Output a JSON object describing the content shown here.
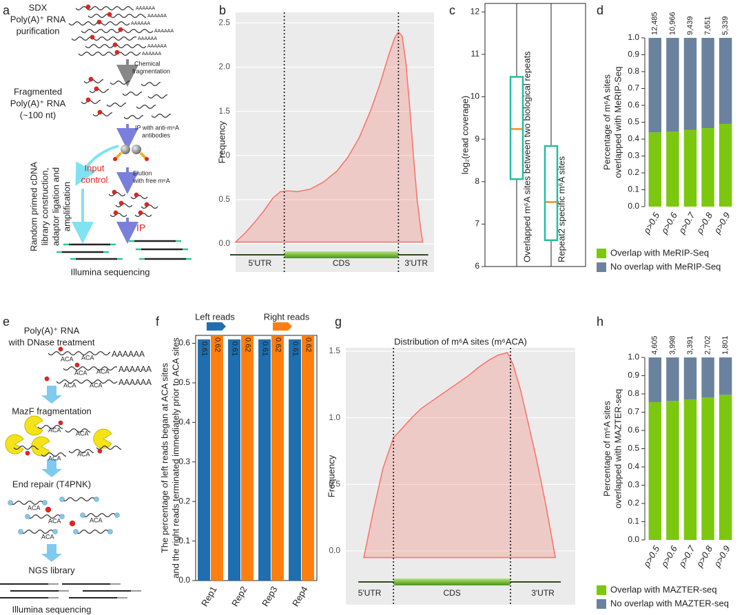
{
  "panel_labels": [
    "a",
    "b",
    "c",
    "d",
    "e",
    "f",
    "g",
    "h"
  ],
  "diagram_a": {
    "title_lines": [
      "SDX",
      "Poly(A)⁺ RNA",
      "purification"
    ],
    "poly_tail": "AAAAAA",
    "fragmentation": [
      "Chemical",
      "fragmentation"
    ],
    "fragmented": [
      "Fragmented",
      "Poly(A)⁺ RNA",
      "(~100 nt)"
    ],
    "ip_step": [
      "IP with anti-m⁶A",
      "antibodies"
    ],
    "input_control": [
      "Input",
      "control"
    ],
    "elution": [
      "Elution",
      "with free m⁶A"
    ],
    "ip": "IP",
    "library": [
      "Random primed cDNA",
      "library construction,",
      "adaptor ligation and",
      "amplification"
    ],
    "sequencing": "Illumina sequencing"
  },
  "diagram_e": {
    "title_lines": [
      "Poly(A)⁺ RNA",
      "with DNase treatment"
    ],
    "poly_tail": "AAAAAA",
    "motif": "ACA",
    "steps": [
      "MazF fragmentation",
      "End repair (T4PNK)",
      "NGS library"
    ],
    "sequencing": "Illumina sequencing"
  },
  "chart_data": [
    {
      "type": "density",
      "ylabel": "Frequency",
      "color": "#f8766d",
      "fill": "#f8766d",
      "grid": true,
      "x": [
        0,
        0.05,
        0.1,
        0.15,
        0.2,
        0.24,
        0.28,
        0.33,
        0.4,
        0.47,
        0.54,
        0.6,
        0.66,
        0.72,
        0.77,
        0.82,
        0.85,
        0.87,
        0.89,
        0.91,
        0.93,
        0.95,
        0.97,
        0.99,
        1.0
      ],
      "values": [
        0.02,
        0.12,
        0.24,
        0.37,
        0.52,
        0.59,
        0.6,
        0.59,
        0.62,
        0.7,
        0.82,
        0.98,
        1.2,
        1.5,
        1.8,
        2.15,
        2.33,
        2.4,
        2.35,
        2.05,
        1.55,
        1.0,
        0.5,
        0.15,
        0.02
      ],
      "xlim": [
        0,
        1.06
      ],
      "ylim": [
        -0.32,
        2.62
      ],
      "yticks": [
        {
          "value": 0,
          "label": "0.0"
        },
        0.5,
        {
          "value": 1,
          "label": "1.0"
        },
        1.5,
        {
          "value": 2,
          "label": "2.0"
        },
        2.5
      ],
      "regions": [
        "5'UTR",
        "CDS",
        "3'UTR"
      ],
      "region_bounds": [
        0.26,
        0.87
      ]
    },
    {
      "type": "box",
      "ylabel": "log₂(read coverage)",
      "color": "#1fbf9f",
      "median_color": "#f28c28",
      "categories": [
        "Overlapped m⁶A sites between two biological repeats",
        "Repeat2 specific m⁶A sites"
      ],
      "boxes": [
        {
          "q1": 8.06,
          "median": 9.24,
          "q3": 10.47
        },
        {
          "q1": 6.62,
          "median": 7.52,
          "q3": 8.84
        }
      ],
      "ylim": [
        6,
        12.2
      ],
      "yticks": [
        6,
        7,
        8,
        9,
        10,
        11,
        12
      ]
    },
    {
      "type": "stacked_bar",
      "ylabel": [
        "Percentage of  m⁶A sites",
        "overlapped with MeRIP-Seq"
      ],
      "categories": [
        "ρ>0.5",
        "ρ>0.6",
        "ρ>0.7",
        "ρ>0.8",
        "ρ>0.9"
      ],
      "series": [
        {
          "name": "Overlap with MeRIP-Seq",
          "color": "#7cc80e",
          "values": [
            0.44,
            0.445,
            0.455,
            0.465,
            0.49
          ]
        },
        {
          "name": "No overlap with MeRIP-Seq",
          "color": "#6b829e",
          "values": [
            0.56,
            0.555,
            0.545,
            0.535,
            0.51
          ]
        }
      ],
      "count_labels": [
        "12,485",
        "10,966",
        "9,439",
        "7,651",
        "5,339"
      ],
      "ylim": [
        0,
        1
      ],
      "yticks": [
        {
          "value": 0,
          "label": "0.0"
        },
        0.1,
        0.2,
        0.3,
        0.4,
        0.5,
        0.6,
        0.7,
        0.8,
        0.9,
        {
          "value": 1,
          "label": "1.0"
        }
      ]
    },
    {
      "type": "grouped_bar",
      "ylabel": [
        "The percentage of left reads began at ACA sites",
        "and the right reads terminated immediately prior to ACA sites"
      ],
      "categories": [
        "Rep1",
        "Rep2",
        "Rep3",
        "Rep4"
      ],
      "series": [
        {
          "name": "Left reads",
          "color": "#1f6eaf",
          "values": [
            0.61,
            0.61,
            0.61,
            0.61
          ]
        },
        {
          "name": "Right reads",
          "color": "#ff7f0e",
          "values": [
            0.62,
            0.62,
            0.62,
            0.62
          ]
        }
      ],
      "ylim": [
        0,
        0.62
      ],
      "yticks": [
        {
          "value": 0,
          "label": "0.0"
        },
        0.1,
        0.2,
        0.3,
        0.4,
        0.5,
        0.6
      ]
    },
    {
      "type": "density",
      "title": "Distribution of m⁶A sites (m⁶ACA)",
      "ylabel": "Frequency",
      "color": "#f8766d",
      "fill": "#f8766d",
      "grid": true,
      "x": [
        0,
        0.05,
        0.1,
        0.155,
        0.2,
        0.25,
        0.3,
        0.35,
        0.4,
        0.45,
        0.5,
        0.55,
        0.6,
        0.65,
        0.7,
        0.75,
        0.78,
        0.82,
        0.86,
        0.9,
        0.95,
        1.0
      ],
      "values": [
        -0.05,
        0.3,
        0.62,
        0.85,
        0.92,
        1.0,
        1.07,
        1.12,
        1.17,
        1.22,
        1.27,
        1.32,
        1.38,
        1.43,
        1.47,
        1.49,
        1.4,
        1.2,
        0.95,
        0.7,
        0.35,
        -0.05
      ],
      "xlim": [
        -0.094,
        1.104
      ],
      "ylim": [
        -0.404,
        1.526
      ],
      "yticks": [
        {
          "value": 0,
          "label": "0.0"
        },
        0.5,
        {
          "value": 1,
          "label": "1.0"
        },
        1.5
      ],
      "regions": [
        "5'UTR",
        "CDS",
        "3'UTR"
      ],
      "region_bounds": [
        0.155,
        0.766
      ]
    },
    {
      "type": "stacked_bar",
      "ylabel": [
        "Percentage of  m⁶A sites",
        "overlapped with MAZTER-seq"
      ],
      "categories": [
        "ρ>0.5",
        "ρ>0.6",
        "ρ>0.7",
        "ρ>0.8",
        "ρ>0.9"
      ],
      "series": [
        {
          "name": "Overlap with MAZTER-seq",
          "color": "#7cc80e",
          "values": [
            0.755,
            0.762,
            0.77,
            0.78,
            0.795
          ]
        },
        {
          "name": "No overlap with MAZTER-seq",
          "color": "#6b829e",
          "values": [
            0.245,
            0.238,
            0.23,
            0.22,
            0.205
          ]
        }
      ],
      "count_labels": [
        "4,605",
        "3,998",
        "3,391",
        "2,702",
        "1,801"
      ],
      "ylim": [
        0,
        1
      ],
      "yticks": [
        {
          "value": 0,
          "label": "0.0"
        },
        0.1,
        0.2,
        0.3,
        0.4,
        0.5,
        0.6,
        0.7,
        0.8,
        0.9,
        {
          "value": 1,
          "label": "1.0"
        }
      ]
    }
  ]
}
